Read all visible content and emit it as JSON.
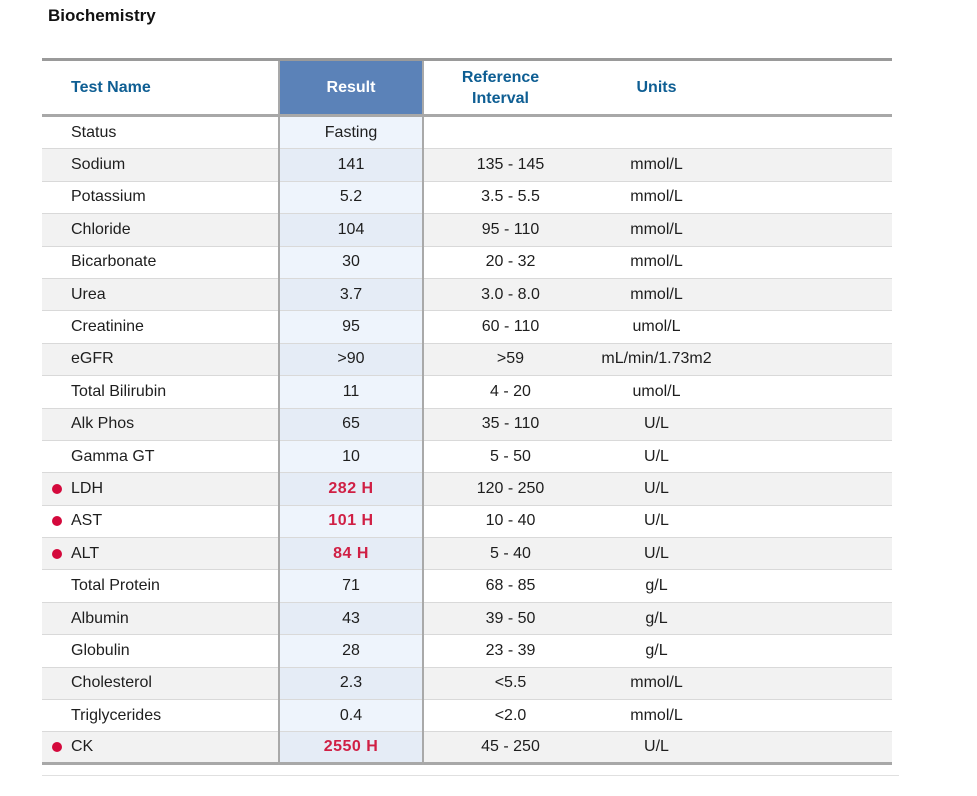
{
  "section_title": "Biochemistry",
  "headers": {
    "name": "Test Name",
    "result": "Result",
    "reference": "Reference Interval",
    "units": "Units"
  },
  "rows": [
    {
      "name": "Status",
      "result": "Fasting",
      "reference": "",
      "units": "",
      "flagged": false
    },
    {
      "name": "Sodium",
      "result": "141",
      "reference": "135 - 145",
      "units": "mmol/L",
      "flagged": false
    },
    {
      "name": "Potassium",
      "result": "5.2",
      "reference": "3.5 - 5.5",
      "units": "mmol/L",
      "flagged": false
    },
    {
      "name": "Chloride",
      "result": "104",
      "reference": "95 - 110",
      "units": "mmol/L",
      "flagged": false
    },
    {
      "name": "Bicarbonate",
      "result": "30",
      "reference": "20 - 32",
      "units": "mmol/L",
      "flagged": false
    },
    {
      "name": "Urea",
      "result": "3.7",
      "reference": "3.0 - 8.0",
      "units": "mmol/L",
      "flagged": false
    },
    {
      "name": "Creatinine",
      "result": "95",
      "reference": "60 - 110",
      "units": "umol/L",
      "flagged": false
    },
    {
      "name": "eGFR",
      "result": ">90",
      "reference": ">59",
      "units": "mL/min/1.73m2",
      "flagged": false
    },
    {
      "name": "Total Bilirubin",
      "result": "11",
      "reference": "4 - 20",
      "units": "umol/L",
      "flagged": false
    },
    {
      "name": "Alk Phos",
      "result": "65",
      "reference": "35 - 110",
      "units": "U/L",
      "flagged": false
    },
    {
      "name": "Gamma GT",
      "result": "10",
      "reference": "5 - 50",
      "units": "U/L",
      "flagged": false
    },
    {
      "name": "LDH",
      "result": "282  H",
      "reference": "120 - 250",
      "units": "U/L",
      "flagged": true
    },
    {
      "name": "AST",
      "result": "101  H",
      "reference": "10 - 40",
      "units": "U/L",
      "flagged": true
    },
    {
      "name": "ALT",
      "result": "84  H",
      "reference": "5 - 40",
      "units": "U/L",
      "flagged": true
    },
    {
      "name": "Total Protein",
      "result": "71",
      "reference": "68 - 85",
      "units": "g/L",
      "flagged": false
    },
    {
      "name": "Albumin",
      "result": "43",
      "reference": "39 - 50",
      "units": "g/L",
      "flagged": false
    },
    {
      "name": "Globulin",
      "result": "28",
      "reference": "23 - 39",
      "units": "g/L",
      "flagged": false
    },
    {
      "name": "Cholesterol",
      "result": "2.3",
      "reference": "<5.5",
      "units": "mmol/L",
      "flagged": false
    },
    {
      "name": "Triglycerides",
      "result": "0.4",
      "reference": "<2.0",
      "units": "mmol/L",
      "flagged": false
    },
    {
      "name": "CK",
      "result": "2550  H",
      "reference": "45 - 250",
      "units": "U/L",
      "flagged": true
    }
  ],
  "colors": {
    "header_text": "#0e5e93",
    "result_header_bg": "#5b82b8",
    "high_flag": "#d01f44"
  }
}
